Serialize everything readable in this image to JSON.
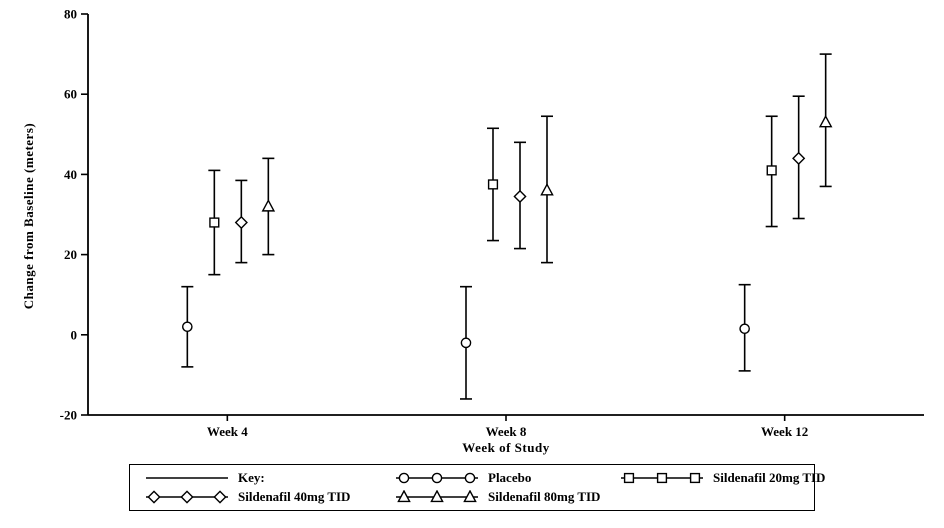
{
  "chart_data": {
    "type": "errorbar",
    "xlabel": "Week of Study",
    "ylabel": "Change from Baseline (meters)",
    "ylim": [
      -20,
      80
    ],
    "yticks": [
      -20,
      0,
      20,
      40,
      60,
      80
    ],
    "categories": [
      "Week 4",
      "Week 8",
      "Week 12"
    ],
    "legend": {
      "key_label": "Key:",
      "position": "bottom",
      "boxed": true
    },
    "grid": false,
    "series": [
      {
        "name": "Placebo",
        "marker": "circle",
        "means": [
          2,
          -2,
          1.5
        ],
        "ci_low": [
          -8,
          -16,
          -9
        ],
        "ci_high": [
          12,
          12,
          12.5
        ]
      },
      {
        "name": "Sildenafil 20mg TID",
        "marker": "square",
        "means": [
          28,
          37.5,
          41
        ],
        "ci_low": [
          15,
          23.5,
          27
        ],
        "ci_high": [
          41,
          51.5,
          54.5
        ]
      },
      {
        "name": "Sildenafil 40mg TID",
        "marker": "diamond",
        "means": [
          28,
          34.5,
          44
        ],
        "ci_low": [
          18,
          21.5,
          29
        ],
        "ci_high": [
          38.5,
          48,
          59.5
        ]
      },
      {
        "name": "Sildenafil 80mg TID",
        "marker": "triangle",
        "means": [
          32,
          36,
          53
        ],
        "ci_low": [
          20,
          18,
          37
        ],
        "ci_high": [
          44,
          54.5,
          70
        ]
      }
    ],
    "colors": {
      "foreground": "#000000",
      "background": "#ffffff"
    }
  }
}
